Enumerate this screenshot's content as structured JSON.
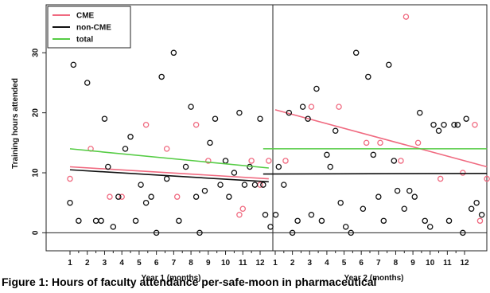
{
  "chart_data": {
    "type": "scatter",
    "ylabel": "Training hours attended",
    "ylim": [
      -3,
      38
    ],
    "yticks": [
      0,
      10,
      20,
      30
    ],
    "xticks_left": [
      "1",
      "2",
      "3",
      "4",
      "5",
      "6",
      "7",
      "8",
      "9",
      "10",
      "11",
      "12"
    ],
    "xticks_right": [
      "1",
      "2",
      "3",
      "4",
      "5",
      "6",
      "7",
      "8",
      "9",
      "10",
      "11",
      "12"
    ],
    "xlabel_left": "Year 1 (months)",
    "xlabel_right": "Year 2 (months)",
    "legend_position": "top-left",
    "series": [
      {
        "name": "CME",
        "color": "#f06a80",
        "points_year1": [
          [
            1,
            9
          ],
          [
            2.2,
            14
          ],
          [
            3.3,
            6
          ],
          [
            4,
            6
          ],
          [
            5.4,
            18
          ],
          [
            6.6,
            14
          ],
          [
            7.2,
            6
          ],
          [
            8.3,
            18
          ],
          [
            9,
            12
          ],
          [
            10.8,
            3
          ],
          [
            11,
            4
          ],
          [
            11.5,
            12
          ],
          [
            12,
            8
          ],
          [
            12.5,
            12
          ]
        ],
        "points_year2": [
          [
            1.6,
            12
          ],
          [
            3.1,
            21
          ],
          [
            4.7,
            21
          ],
          [
            6.3,
            15
          ],
          [
            7.1,
            15
          ],
          [
            8.3,
            12
          ],
          [
            8.6,
            36
          ],
          [
            9.3,
            15
          ],
          [
            10.6,
            9
          ],
          [
            11.9,
            10
          ],
          [
            12.6,
            18
          ],
          [
            12.9,
            2
          ],
          [
            13.3,
            9
          ]
        ],
        "trend_year1": [
          [
            1,
            11
          ],
          [
            12.5,
            9
          ]
        ],
        "trend_year2": [
          [
            1,
            20.5
          ],
          [
            13.3,
            11
          ]
        ]
      },
      {
        "name": "non-CME",
        "color": "#111111",
        "points_year1": [
          [
            1,
            5
          ],
          [
            1.2,
            28
          ],
          [
            1.5,
            2
          ],
          [
            2,
            25
          ],
          [
            2.5,
            2
          ],
          [
            2.8,
            2
          ],
          [
            3,
            19
          ],
          [
            3.2,
            11
          ],
          [
            3.5,
            1
          ],
          [
            3.8,
            6
          ],
          [
            4.2,
            14
          ],
          [
            4.5,
            16
          ],
          [
            4.8,
            2
          ],
          [
            5.1,
            8
          ],
          [
            5.4,
            5
          ],
          [
            5.7,
            6
          ],
          [
            6,
            0
          ],
          [
            6.3,
            26
          ],
          [
            6.6,
            9
          ],
          [
            7,
            30
          ],
          [
            7.3,
            2
          ],
          [
            7.7,
            11
          ],
          [
            8,
            21
          ],
          [
            8.3,
            6
          ],
          [
            8.5,
            0
          ],
          [
            8.8,
            7
          ],
          [
            9.1,
            15
          ],
          [
            9.4,
            19
          ],
          [
            9.7,
            8
          ],
          [
            10,
            12
          ],
          [
            10.2,
            6
          ],
          [
            10.5,
            10
          ],
          [
            10.8,
            20
          ],
          [
            11.1,
            8
          ],
          [
            11.4,
            11
          ],
          [
            11.7,
            8
          ],
          [
            12,
            19
          ],
          [
            12.3,
            3
          ],
          [
            12.6,
            1
          ],
          [
            12.9,
            3
          ]
        ],
        "points_year2": [
          [
            0.3,
            8
          ],
          [
            1.2,
            11
          ],
          [
            1.5,
            8
          ],
          [
            1.8,
            20
          ],
          [
            2,
            0
          ],
          [
            2.3,
            2
          ],
          [
            2.6,
            21
          ],
          [
            2.9,
            19
          ],
          [
            3.1,
            3
          ],
          [
            3.4,
            24
          ],
          [
            3.7,
            2
          ],
          [
            4,
            13
          ],
          [
            4.2,
            11
          ],
          [
            4.5,
            17
          ],
          [
            4.8,
            5
          ],
          [
            5.1,
            1
          ],
          [
            5.4,
            0
          ],
          [
            5.7,
            30
          ],
          [
            6.1,
            4
          ],
          [
            6.4,
            26
          ],
          [
            6.7,
            13
          ],
          [
            7,
            6
          ],
          [
            7.3,
            2
          ],
          [
            7.6,
            28
          ],
          [
            7.9,
            12
          ],
          [
            8.1,
            7
          ],
          [
            8.5,
            4
          ],
          [
            8.8,
            7
          ],
          [
            9.1,
            6
          ],
          [
            9.4,
            20
          ],
          [
            9.7,
            2
          ],
          [
            10,
            1
          ],
          [
            10.2,
            18
          ],
          [
            10.5,
            17
          ],
          [
            10.8,
            18
          ],
          [
            11.1,
            2
          ],
          [
            11.4,
            18
          ],
          [
            11.6,
            18
          ],
          [
            11.9,
            0
          ],
          [
            12.1,
            19
          ],
          [
            12.4,
            4
          ],
          [
            12.7,
            5
          ],
          [
            13,
            3
          ]
        ],
        "trend_year1": [
          [
            1,
            10.5
          ],
          [
            12.5,
            8.5
          ]
        ],
        "trend_year2": [
          [
            0.3,
            9.8
          ],
          [
            13.3,
            9.9
          ]
        ]
      },
      {
        "name": "total",
        "color": "#55cc44",
        "points_year1": [],
        "points_year2": [],
        "trend_year1": [
          [
            1,
            14
          ],
          [
            12.5,
            10.8
          ]
        ],
        "trend_year2": [
          [
            0.3,
            14
          ],
          [
            13.3,
            14
          ]
        ]
      }
    ]
  },
  "caption": "Figure 1: Hours of faculty attendance per-safe-moon in pharmaceutical"
}
